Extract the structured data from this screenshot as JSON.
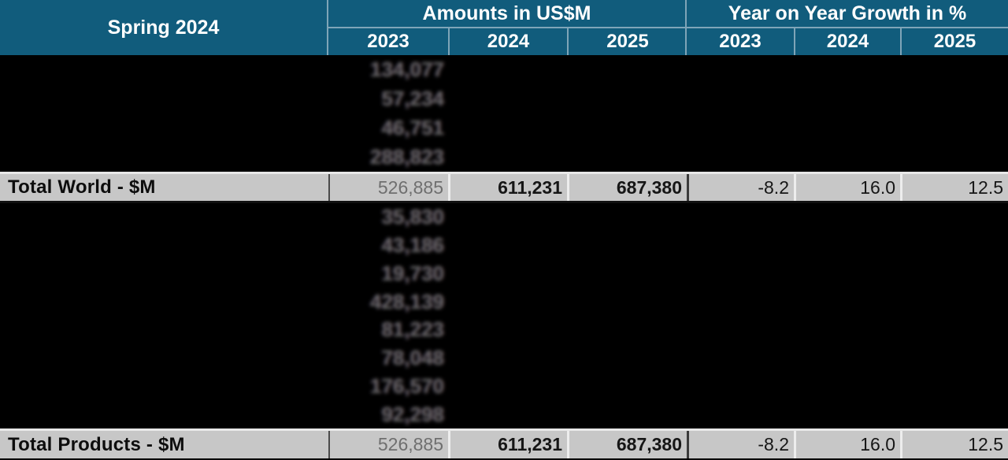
{
  "colors": {
    "header_bg": "#115C7C",
    "header_line": "#7FA5B8",
    "header_text": "#FFFFFF",
    "redacted_bg": "#000000",
    "total_row_bg": "#C7C7C7",
    "total_label_text": "#0D0D0D",
    "muted_2023_value": "#6F6F6F",
    "blurred_value_text": "#6A6A6A"
  },
  "header": {
    "title": "Spring 2024",
    "groups": [
      {
        "label": "Amounts in US$M",
        "years": [
          "2023",
          "2024",
          "2025"
        ]
      },
      {
        "label": "Year on Year Growth in %",
        "years": [
          "2023",
          "2024",
          "2025"
        ]
      }
    ]
  },
  "rows": {
    "redacted_top_amounts_2023": [
      "134,077",
      "57,234",
      "46,751",
      "288,823"
    ],
    "total_world": {
      "label": "Total World - $M",
      "amounts": [
        "526,885",
        "611,231",
        "687,380"
      ],
      "growth": [
        "-8.2",
        "16.0",
        "12.5"
      ]
    },
    "redacted_bottom_amounts_2023": [
      "35,830",
      "43,186",
      "19,730",
      "428,139",
      "81,223",
      "78,048",
      "176,570",
      "92,298"
    ],
    "total_products": {
      "label": "Total Products - $M",
      "amounts": [
        "526,885",
        "611,231",
        "687,380"
      ],
      "growth": [
        "-8.2",
        "16.0",
        "12.5"
      ]
    }
  },
  "chart_data": {
    "type": "table",
    "title": "Spring 2024",
    "column_groups": [
      "Amounts in US$M",
      "Year on Year Growth in %"
    ],
    "columns": [
      "Amounts 2023",
      "Amounts 2024",
      "Amounts 2025",
      "Growth % 2023",
      "Growth % 2024",
      "Growth % 2025"
    ],
    "rows": [
      {
        "label": "",
        "redacted": true,
        "blurred_amount_2023": 134077
      },
      {
        "label": "",
        "redacted": true,
        "blurred_amount_2023": 57234
      },
      {
        "label": "",
        "redacted": true,
        "blurred_amount_2023": 46751
      },
      {
        "label": "",
        "redacted": true,
        "blurred_amount_2023": 288823
      },
      {
        "label": "Total World - $M",
        "redacted": false,
        "amounts": [
          526885,
          611231,
          687380
        ],
        "growth_pct": [
          -8.2,
          16.0,
          12.5
        ]
      },
      {
        "label": "",
        "redacted": true,
        "blurred_amount_2023": 35830
      },
      {
        "label": "",
        "redacted": true,
        "blurred_amount_2023": 43186
      },
      {
        "label": "",
        "redacted": true,
        "blurred_amount_2023": 19730
      },
      {
        "label": "",
        "redacted": true,
        "blurred_amount_2023": 428139
      },
      {
        "label": "",
        "redacted": true,
        "blurred_amount_2023": 81223
      },
      {
        "label": "",
        "redacted": true,
        "blurred_amount_2023": 78048
      },
      {
        "label": "",
        "redacted": true,
        "blurred_amount_2023": 176570
      },
      {
        "label": "",
        "redacted": true,
        "blurred_amount_2023": 92298
      },
      {
        "label": "Total Products - $M",
        "redacted": false,
        "amounts": [
          526885,
          611231,
          687380
        ],
        "growth_pct": [
          -8.2,
          16.0,
          12.5
        ]
      }
    ],
    "notes_layout": "detail row labels and non-2023 cells are blacked out; only blurred 2023 amounts and the two total rows are legible"
  }
}
